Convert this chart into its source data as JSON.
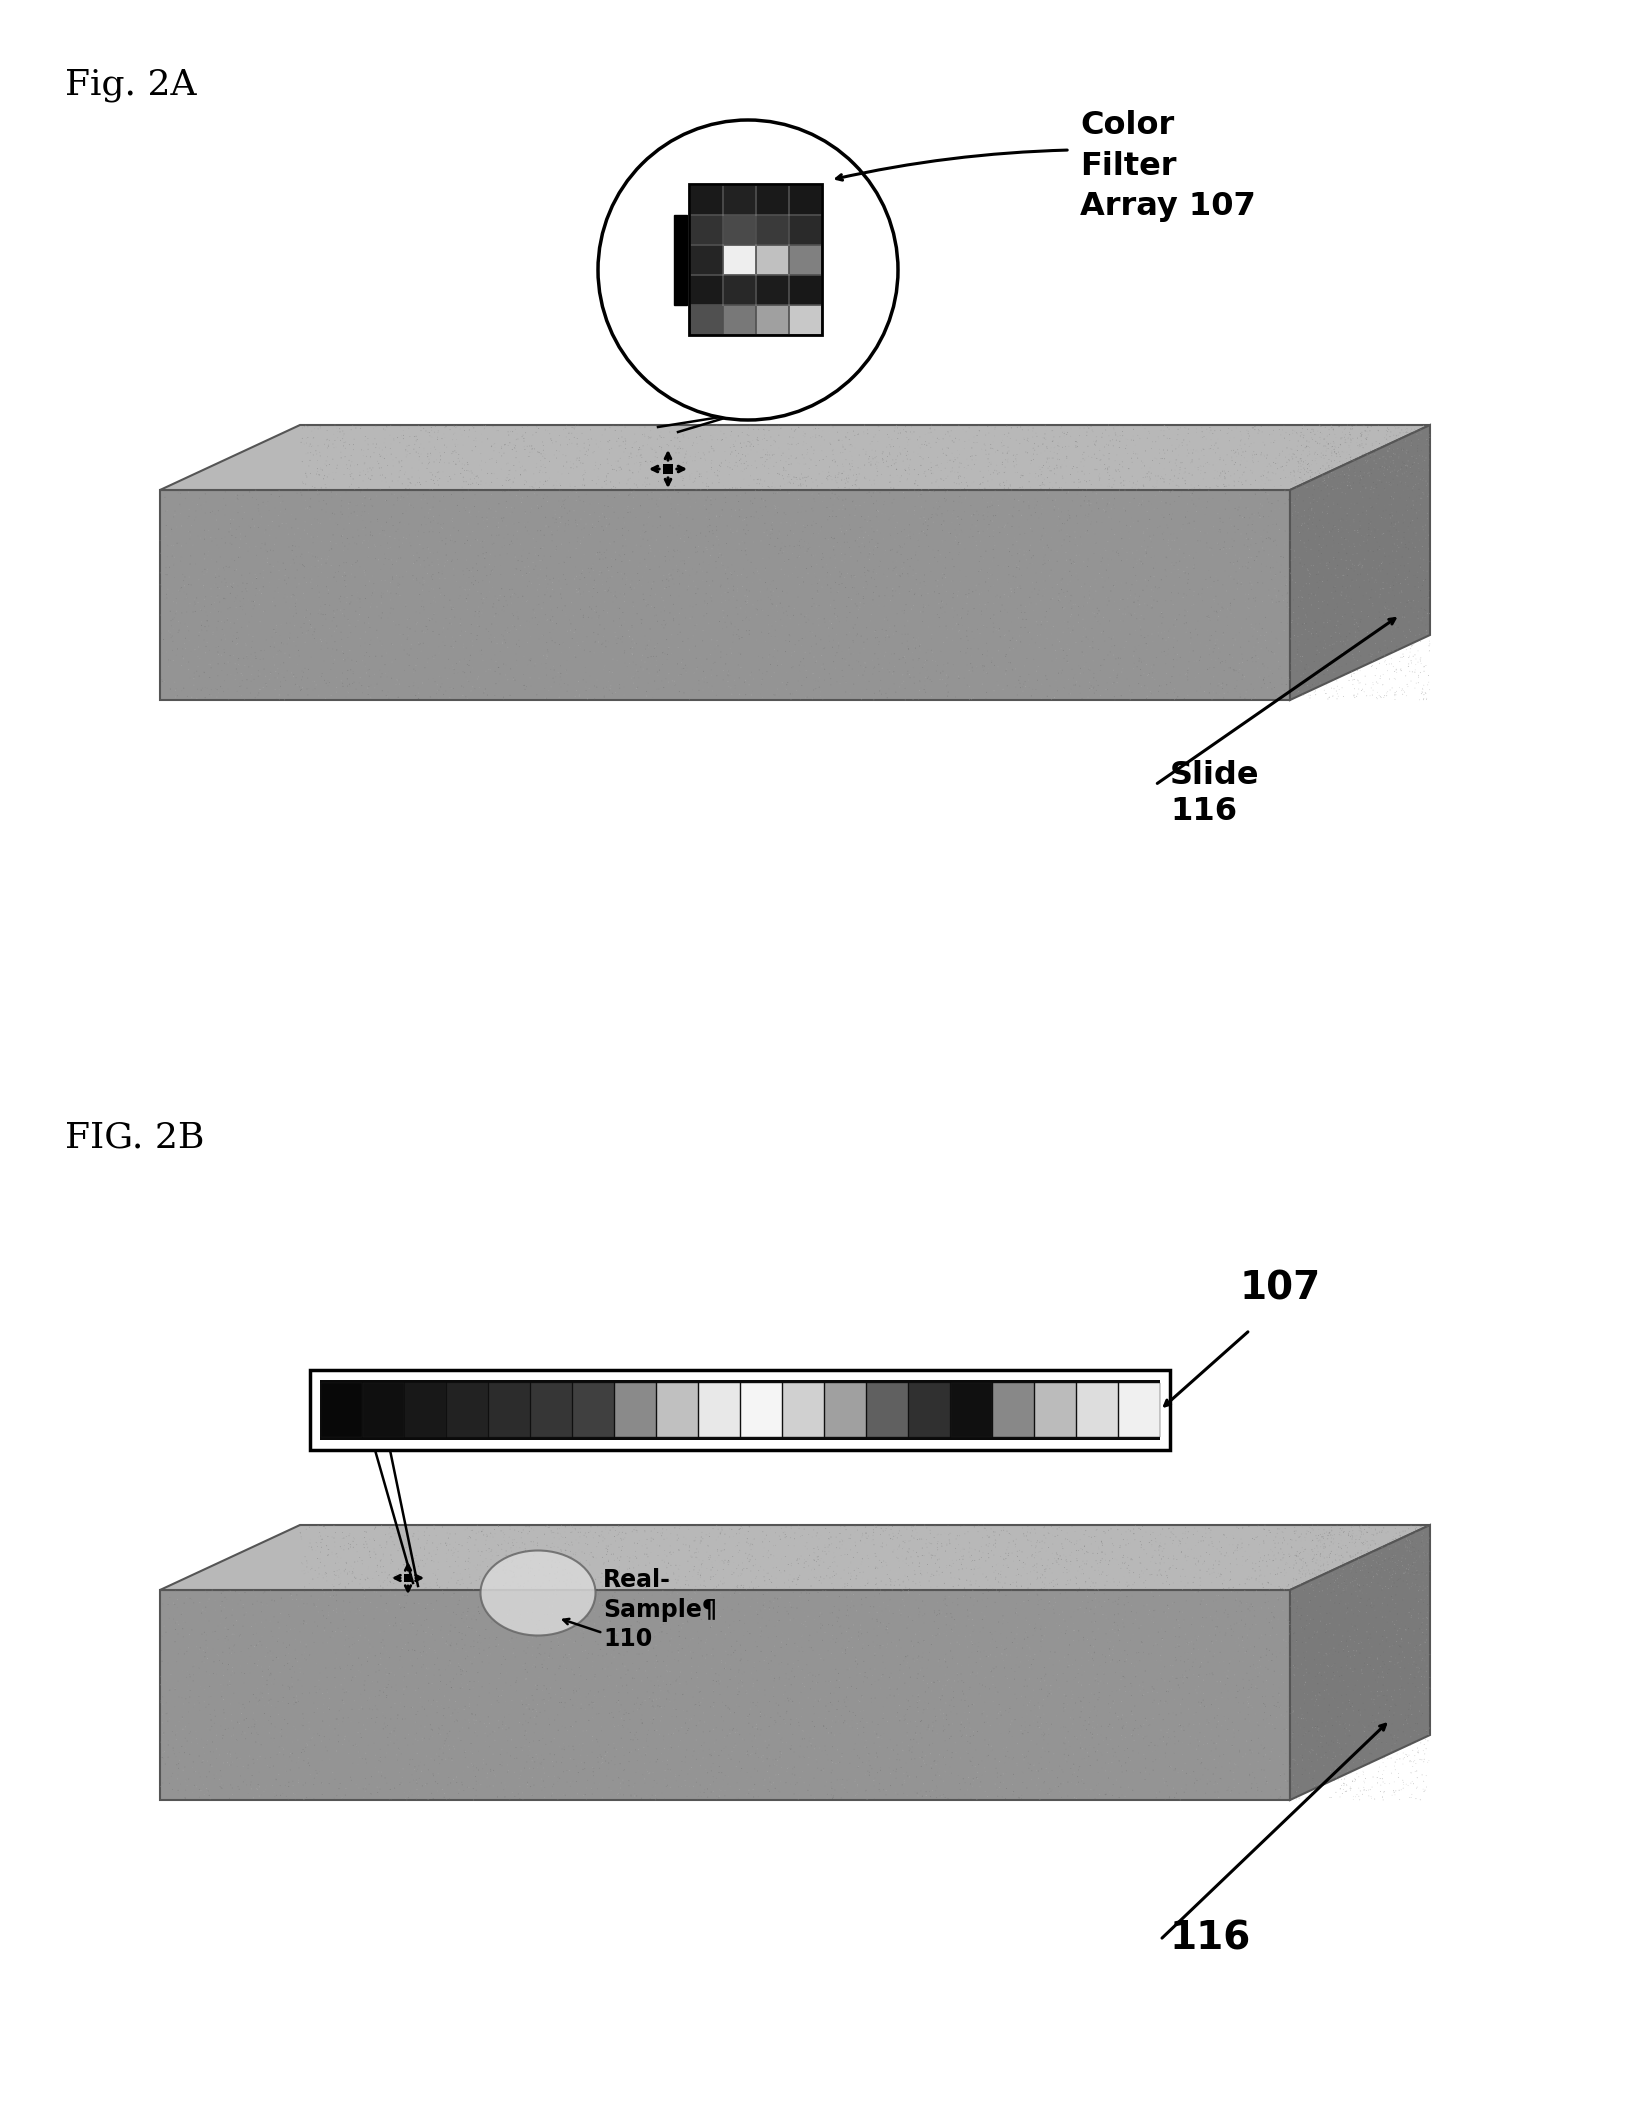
{
  "fig_label_2a": "Fig. 2A",
  "fig_label_2b": "FIG. 2B",
  "label_color_filter": "Color\nFilter\nArray 107",
  "label_slide_2a": "Slide\n116",
  "label_107": "107",
  "label_116_2b": "116",
  "bg_color": "#ffffff",
  "slide_top_color": "#b8b8b8",
  "slide_front_color": "#949494",
  "slide_right_color": "#7a7a7a",
  "slide_edge_color": "#555555",
  "grid_colors_2a": [
    [
      "#1a1a1a",
      "#222222",
      "#1a1a1a",
      "#181818"
    ],
    [
      "#333333",
      "#4a4a4a",
      "#3a3a3a",
      "#2a2a2a"
    ],
    [
      "#252525",
      "#eeeeee",
      "#c0c0c0",
      "#808080"
    ],
    [
      "#1a1a1a",
      "#282828",
      "#1c1c1c",
      "#181818"
    ],
    [
      "#505050",
      "#787878",
      "#a0a0a0",
      "#c8c8c8"
    ]
  ],
  "strip_cells": [
    "#080808",
    "#0f0f0f",
    "#181818",
    "#222222",
    "#2c2c2c",
    "#363636",
    "#404040",
    "#8a8a8a",
    "#c0c0c0",
    "#e8e8e8",
    "#f5f5f5",
    "#d0d0d0",
    "#a0a0a0",
    "#606060",
    "#303030",
    "#101010",
    "#888888",
    "#bbbbbb",
    "#dddddd",
    "#f0f0f0"
  ]
}
